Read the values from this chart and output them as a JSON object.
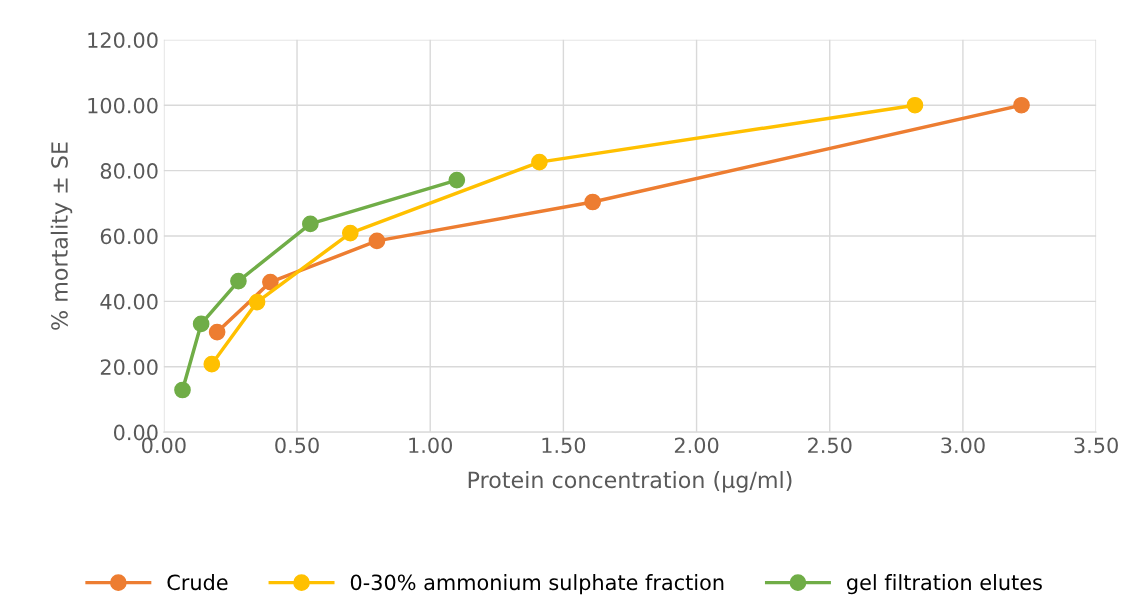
{
  "chart_data": {
    "type": "line",
    "xlabel": "Protein concentration (µg/ml)",
    "ylabel": "% mortality ± SE",
    "marker": "circle",
    "grid": true,
    "legend": "bottom",
    "xlim": [
      0,
      3.5
    ],
    "ylim": [
      0,
      120
    ],
    "xticks": [
      {
        "value": 0,
        "label": "0.00"
      },
      {
        "value": 0.5,
        "label": "0.50"
      },
      {
        "value": 1,
        "label": "1.00"
      },
      {
        "value": 1.5,
        "label": "1.50"
      },
      {
        "value": 2,
        "label": "2.00"
      },
      {
        "value": 2.5,
        "label": "2.50"
      },
      {
        "value": 3,
        "label": "3.00"
      },
      {
        "value": 3.5,
        "label": "3.50"
      }
    ],
    "yticks": [
      {
        "value": 0,
        "label": "0.00"
      },
      {
        "value": 20,
        "label": "20.00"
      },
      {
        "value": 40,
        "label": "40.00"
      },
      {
        "value": 60,
        "label": "60.00"
      },
      {
        "value": 80,
        "label": "80.00"
      },
      {
        "value": 100,
        "label": "100.00"
      },
      {
        "value": 120,
        "label": "120.00"
      }
    ],
    "series": [
      {
        "name": "Crude",
        "color": "#ed7d31",
        "x": [
          0.2,
          0.4,
          0.8,
          1.61,
          3.22
        ],
        "values": [
          30.6,
          45.9,
          58.5,
          70.4,
          100
        ]
      },
      {
        "name": "0-30% ammonium sulphate fraction",
        "color": "#ffc000",
        "x": [
          0.18,
          0.35,
          0.7,
          1.41,
          2.82
        ],
        "values": [
          20.8,
          39.8,
          60.9,
          82.6,
          100
        ]
      },
      {
        "name": "gel filtration elutes",
        "color": "#70ad47",
        "x": [
          0.07,
          0.14,
          0.28,
          0.55,
          1.1
        ],
        "values": [
          12.9,
          33.1,
          46.2,
          63.7,
          77.1
        ]
      }
    ]
  }
}
